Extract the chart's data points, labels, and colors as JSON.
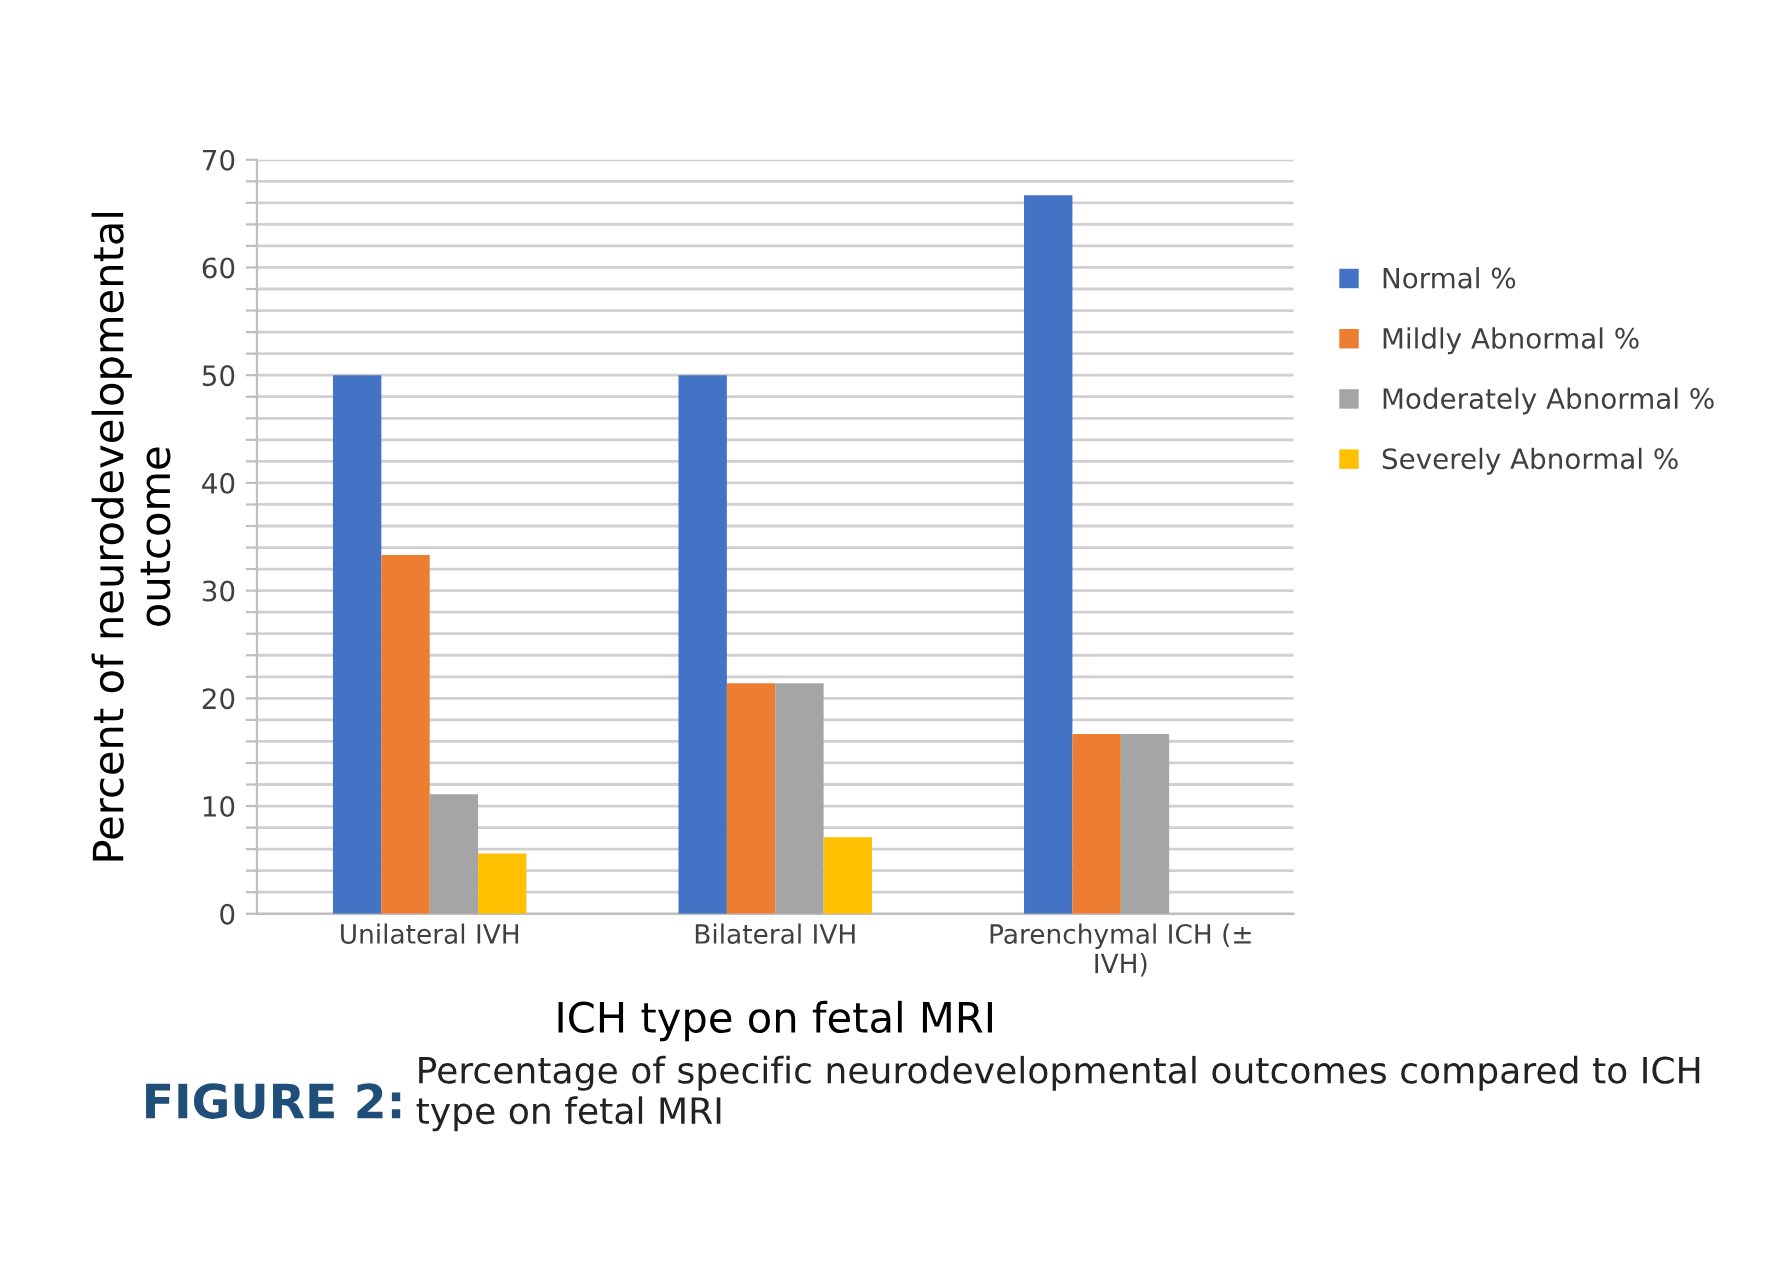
{
  "chart_data": {
    "type": "bar",
    "xlabel": "ICH type on fetal MRI",
    "ylabel": "Percent of neurodevelopmental\noutcome",
    "categories": [
      "Unilateral IVH",
      "Bilateral IVH",
      "Parenchymal ICH (±\nIVH)"
    ],
    "series": [
      {
        "name": "Normal %",
        "color": "#4472c4",
        "values": [
          50,
          50,
          66.7
        ]
      },
      {
        "name": "Mildly Abnormal %",
        "color": "#ed7d31",
        "values": [
          33.3,
          21.4,
          16.7
        ]
      },
      {
        "name": "Moderately Abnormal %",
        "color": "#a5a5a5",
        "values": [
          11.1,
          21.4,
          16.7
        ]
      },
      {
        "name": "Severely Abnormal %",
        "color": "#ffc000",
        "values": [
          5.6,
          7.1,
          0
        ]
      }
    ],
    "ylim": [
      0,
      70
    ],
    "yticks": [
      0,
      {
        "value": 2,
        "label": null
      },
      {
        "value": 4,
        "label": null
      },
      {
        "value": 6,
        "label": null
      },
      {
        "value": 8,
        "label": null
      },
      10,
      {
        "value": 12,
        "label": null
      },
      {
        "value": 14,
        "label": null
      },
      {
        "value": 16,
        "label": null
      },
      {
        "value": 18,
        "label": null
      },
      20,
      {
        "value": 22,
        "label": null
      },
      {
        "value": 24,
        "label": null
      },
      {
        "value": 26,
        "label": null
      },
      {
        "value": 28,
        "label": null
      },
      30,
      {
        "value": 32,
        "label": null
      },
      {
        "value": 34,
        "label": null
      },
      {
        "value": 36,
        "label": null
      },
      {
        "value": 38,
        "label": null
      },
      40,
      {
        "value": 42,
        "label": null
      },
      {
        "value": 44,
        "label": null
      },
      {
        "value": 46,
        "label": null
      },
      {
        "value": 48,
        "label": null
      },
      50,
      {
        "value": 52,
        "label": null
      },
      {
        "value": 54,
        "label": null
      },
      {
        "value": 56,
        "label": null
      },
      {
        "value": 58,
        "label": null
      },
      60,
      {
        "value": 62,
        "label": null
      },
      {
        "value": 64,
        "label": null
      },
      {
        "value": 66,
        "label": null
      },
      {
        "value": 68,
        "label": null
      },
      70
    ],
    "grid": "y",
    "legend": "right",
    "annotations": [
      "FIGURE 2:",
      "Percentage of specific neurodevelopmental outcomes compared to ICH type on fetal MRI"
    ]
  }
}
